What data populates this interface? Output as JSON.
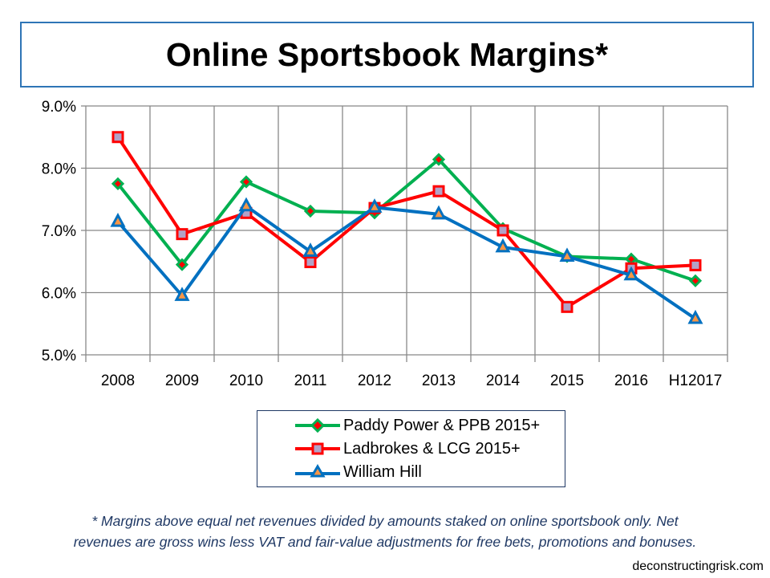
{
  "chart_data": {
    "type": "line",
    "title": "Online Sportsbook Margins*",
    "categories": [
      "2008",
      "2009",
      "2010",
      "2011",
      "2012",
      "2013",
      "2014",
      "2015",
      "2016",
      "H12017"
    ],
    "ylim": [
      5.0,
      9.0
    ],
    "yticks": [
      "5.0%",
      "6.0%",
      "7.0%",
      "8.0%",
      "9.0%"
    ],
    "ytick_values": [
      5,
      6,
      7,
      8,
      9
    ],
    "grid": true,
    "legend_placement": "bottom-center",
    "series": [
      {
        "name": "Paddy Power & PPB 2015+",
        "color": "#00B050",
        "marker": "diamond",
        "values": [
          7.75,
          6.45,
          7.78,
          7.31,
          7.28,
          8.14,
          7.03,
          6.58,
          6.54,
          6.19
        ]
      },
      {
        "name": "Ladbrokes & LCG 2015+",
        "color": "#FF0000",
        "marker": "square",
        "values": [
          8.5,
          6.94,
          7.28,
          6.49,
          7.36,
          7.63,
          7.0,
          5.77,
          6.39,
          6.44
        ]
      },
      {
        "name": "William Hill",
        "color": "#0070C0",
        "marker": "triangle",
        "values": [
          7.14,
          5.95,
          7.39,
          6.66,
          7.37,
          7.26,
          6.73,
          6.58,
          6.28,
          5.58
        ]
      }
    ]
  },
  "footnote": {
    "line1": "* Margins above equal net revenues divided by amounts staked on online sportsbook only. Net",
    "line2": "revenues are gross wins less VAT and fair-value adjustments for free bets, promotions and bonuses."
  },
  "credit": "deconstructingrisk.com"
}
